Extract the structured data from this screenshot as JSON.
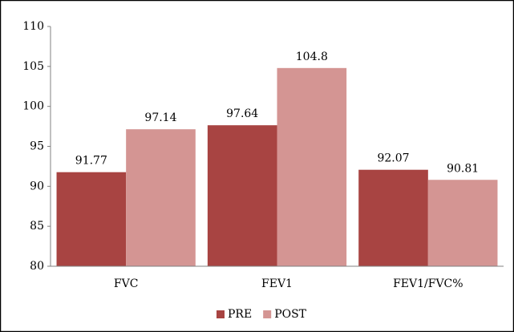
{
  "chart_data": {
    "type": "bar",
    "categories": [
      "FVC",
      "FEV1",
      "FEV1/FVC%"
    ],
    "series": [
      {
        "name": "PRE",
        "color": "#a84442",
        "values": [
          91.77,
          97.64,
          92.07
        ]
      },
      {
        "name": "POST",
        "color": "#d49593",
        "values": [
          97.14,
          104.8,
          90.81
        ]
      }
    ],
    "ylim": [
      80,
      110
    ],
    "yticks": [
      80,
      85,
      90,
      95,
      100,
      105,
      110
    ],
    "grid": false,
    "legend": "bottom"
  }
}
